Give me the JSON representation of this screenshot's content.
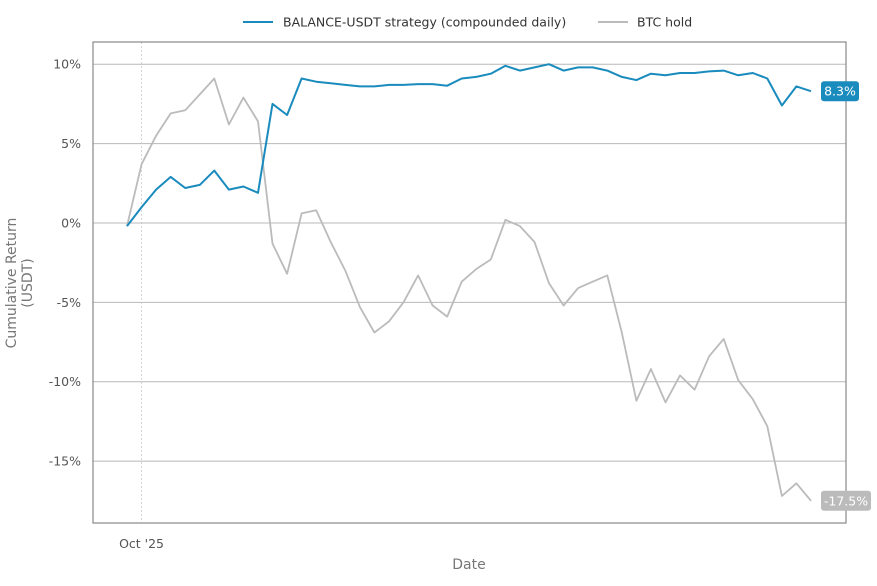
{
  "chart_data": {
    "type": "line",
    "xlabel": "Date",
    "ylabel": "Cumulative Return\n(USDT)",
    "ylim": [
      -18.9,
      11.4
    ],
    "yticks": [
      10,
      5,
      0,
      -5,
      -10,
      -15
    ],
    "ytick_labels": [
      "10%",
      "5%",
      "0%",
      "-5%",
      "-10%",
      "-15%"
    ],
    "xticks": [
      "2025-10-01"
    ],
    "xtick_labels": [
      "Oct '25"
    ],
    "grid": "horizontal",
    "legend_position": "top-center",
    "x": [
      "2025-09-30",
      "2025-10-01",
      "2025-10-02",
      "2025-10-03",
      "2025-10-04",
      "2025-10-05",
      "2025-10-06",
      "2025-10-07",
      "2025-10-08",
      "2025-10-09",
      "2025-10-10",
      "2025-10-11",
      "2025-10-12",
      "2025-10-13",
      "2025-10-14",
      "2025-10-15",
      "2025-10-16",
      "2025-10-17",
      "2025-10-18",
      "2025-10-19",
      "2025-10-20",
      "2025-10-21",
      "2025-10-22",
      "2025-10-23",
      "2025-10-24",
      "2025-10-25",
      "2025-10-26",
      "2025-10-27",
      "2025-10-28",
      "2025-10-29",
      "2025-10-30",
      "2025-10-31",
      "2025-11-01",
      "2025-11-02",
      "2025-11-03",
      "2025-11-04",
      "2025-11-05",
      "2025-11-06",
      "2025-11-07",
      "2025-11-08",
      "2025-11-09",
      "2025-11-10",
      "2025-11-11",
      "2025-11-12",
      "2025-11-13",
      "2025-11-14",
      "2025-11-15",
      "2025-11-16"
    ],
    "series": [
      {
        "name": "BALANCE-USDT strategy (compounded daily)",
        "color": "#1a8bbd",
        "end_label": "8.3%",
        "values": [
          -0.2,
          1.0,
          2.1,
          2.9,
          2.2,
          2.4,
          3.3,
          2.1,
          2.3,
          1.9,
          7.5,
          6.8,
          9.1,
          8.9,
          8.8,
          8.7,
          8.6,
          8.6,
          8.7,
          8.7,
          8.75,
          8.75,
          8.65,
          9.1,
          9.2,
          9.4,
          9.9,
          9.6,
          9.8,
          10.0,
          9.6,
          9.8,
          9.8,
          9.6,
          9.2,
          9.0,
          9.4,
          9.3,
          9.45,
          9.45,
          9.55,
          9.6,
          9.3,
          9.45,
          9.1,
          7.4,
          8.6,
          8.3
        ]
      },
      {
        "name": "BTC hold",
        "color": "#bbbbbb",
        "end_label": "-17.5%",
        "values": [
          -0.2,
          3.7,
          5.5,
          6.9,
          7.1,
          8.1,
          9.1,
          6.2,
          7.9,
          6.4,
          -1.3,
          -3.2,
          0.6,
          0.8,
          -1.2,
          -3.0,
          -5.3,
          -6.9,
          -6.2,
          -5.0,
          -3.3,
          -5.2,
          -5.9,
          -3.7,
          -2.9,
          -2.3,
          0.2,
          -0.2,
          -1.2,
          -3.8,
          -5.2,
          -4.1,
          -3.7,
          -3.3,
          -6.9,
          -11.2,
          -9.2,
          -11.3,
          -9.6,
          -10.5,
          -8.4,
          -7.3,
          -9.9,
          -11.1,
          -12.8,
          -17.2,
          -16.4,
          -17.5
        ]
      }
    ]
  }
}
